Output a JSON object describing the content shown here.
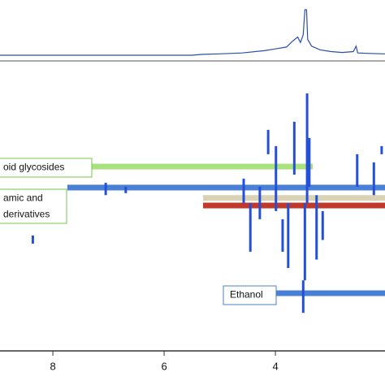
{
  "chart_data": {
    "type": "nmr",
    "xlim": [
      8.95,
      2.03
    ],
    "xticks": [
      8,
      6,
      4
    ],
    "spectrum": {
      "color": "#2a4fa8",
      "ylim": [
        0,
        100
      ],
      "x": [
        8.95,
        5.5,
        5.3,
        5.0,
        4.6,
        4.2,
        4.0,
        3.8,
        3.7,
        3.6,
        3.55,
        3.5,
        3.47,
        3.44,
        3.42,
        3.35,
        3.2,
        3.0,
        2.8,
        2.6,
        2.55,
        2.52,
        2.3,
        2.03
      ],
      "values": [
        0,
        0,
        2,
        3,
        5,
        10,
        14,
        18,
        30,
        40,
        28,
        45,
        100,
        100,
        35,
        20,
        12,
        8,
        6,
        8,
        20,
        5,
        4,
        3
      ]
    },
    "map_ylim": [
      0,
      100
    ],
    "signals": {
      "color": "#2450d8",
      "x": [
        3.43,
        3.47,
        3.5,
        3.39,
        3.66,
        3.77,
        3.87,
        3.26,
        3.15,
        3.99,
        4.13,
        4.28,
        4.45,
        4.57,
        2.53,
        2.23,
        2.09,
        8.36,
        7.05,
        6.69
      ],
      "top": [
        8.7,
        47.8,
        75.4,
        24.6,
        18.8,
        47.8,
        53.6,
        45,
        50.7,
        27.5,
        21.7,
        42,
        47.8,
        39.1,
        30.4,
        33.3,
        27.5,
        59.4,
        40.6,
        42
      ],
      "bottom": [
        47.8,
        75.4,
        87,
        42,
        37.7,
        71,
        65.2,
        68,
        61,
        50.7,
        30.4,
        53.6,
        65.2,
        47.8,
        42,
        45,
        30.4,
        62.3,
        45,
        44.3
      ]
    },
    "bands": [
      {
        "color": "#a8e27c",
        "from": 7.3,
        "to": 3.33,
        "row": 34.8
      },
      {
        "color": "#4a7fd6",
        "from": 7.74,
        "to": 2.03,
        "row": 42.3
      },
      {
        "color": "#d9d2b4",
        "from": 5.3,
        "to": 2.03,
        "row": 46
      },
      {
        "color": "#c0392b",
        "from": 5.3,
        "to": 2.03,
        "row": 48.7
      },
      {
        "color": "#4a7fd6",
        "from": 3.99,
        "to": 2.03,
        "row": 80
      }
    ],
    "labels": [
      {
        "lines": [
          "oid glycosides"
        ],
        "color": "#7ac34a"
      },
      {
        "lines": [
          "amic and",
          "derivatives"
        ],
        "color": "#7ac34a"
      },
      {
        "lines": [
          "Ethanol"
        ],
        "color": "#4a7fd6"
      }
    ]
  }
}
